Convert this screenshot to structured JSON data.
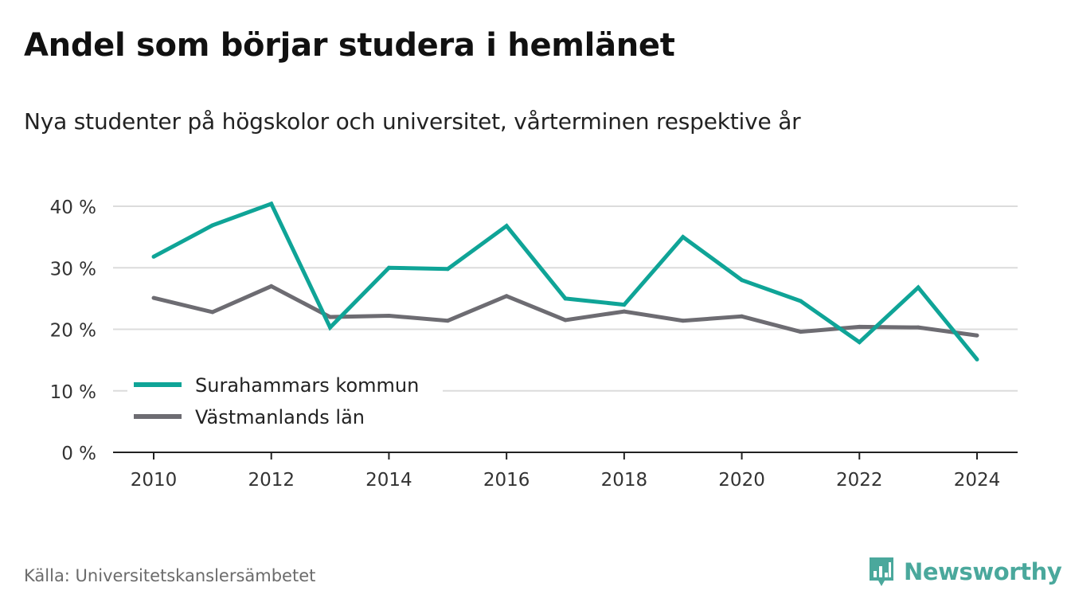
{
  "title": "Andel som börjar studera i hemlänet",
  "subtitle": "Nya studenter på högskolor och universitet, vårterminen respektive år",
  "source": "Källa: Universitetskanslersämbetet",
  "brand": {
    "name": "Newsworthy",
    "icon": "newsworthy-logo-icon",
    "color": "#4aa89c"
  },
  "chart_data": {
    "type": "line",
    "x": [
      2010,
      2011,
      2012,
      2013,
      2014,
      2015,
      2016,
      2017,
      2018,
      2019,
      2020,
      2021,
      2022,
      2023,
      2024
    ],
    "series": [
      {
        "name": "Surahammars kommun",
        "color": "#0fa497",
        "values": [
          31.8,
          36.9,
          40.4,
          20.3,
          30.0,
          29.8,
          36.8,
          25.0,
          24.0,
          35.0,
          28.0,
          24.6,
          17.9,
          26.8,
          15.1
        ]
      },
      {
        "name": "Västmanlands län",
        "color": "#6d6c72",
        "values": [
          25.1,
          22.8,
          27.0,
          22.0,
          22.2,
          21.4,
          25.4,
          21.5,
          22.9,
          21.4,
          22.1,
          19.6,
          20.4,
          20.3,
          19.0
        ]
      }
    ],
    "ylim": [
      0,
      40
    ],
    "yticks": [
      "0 %",
      "10 %",
      "20 %",
      "30 %",
      "40 %"
    ],
    "ytick_values": [
      0,
      10,
      20,
      30,
      40
    ],
    "xticks": [
      "2010",
      "2012",
      "2014",
      "2016",
      "2018",
      "2020",
      "2022",
      "2024"
    ],
    "xtick_values": [
      2010,
      2012,
      2014,
      2016,
      2018,
      2020,
      2022,
      2024
    ],
    "xlabel": "",
    "ylabel": "",
    "grid": true,
    "legend_position": "bottom-left"
  }
}
